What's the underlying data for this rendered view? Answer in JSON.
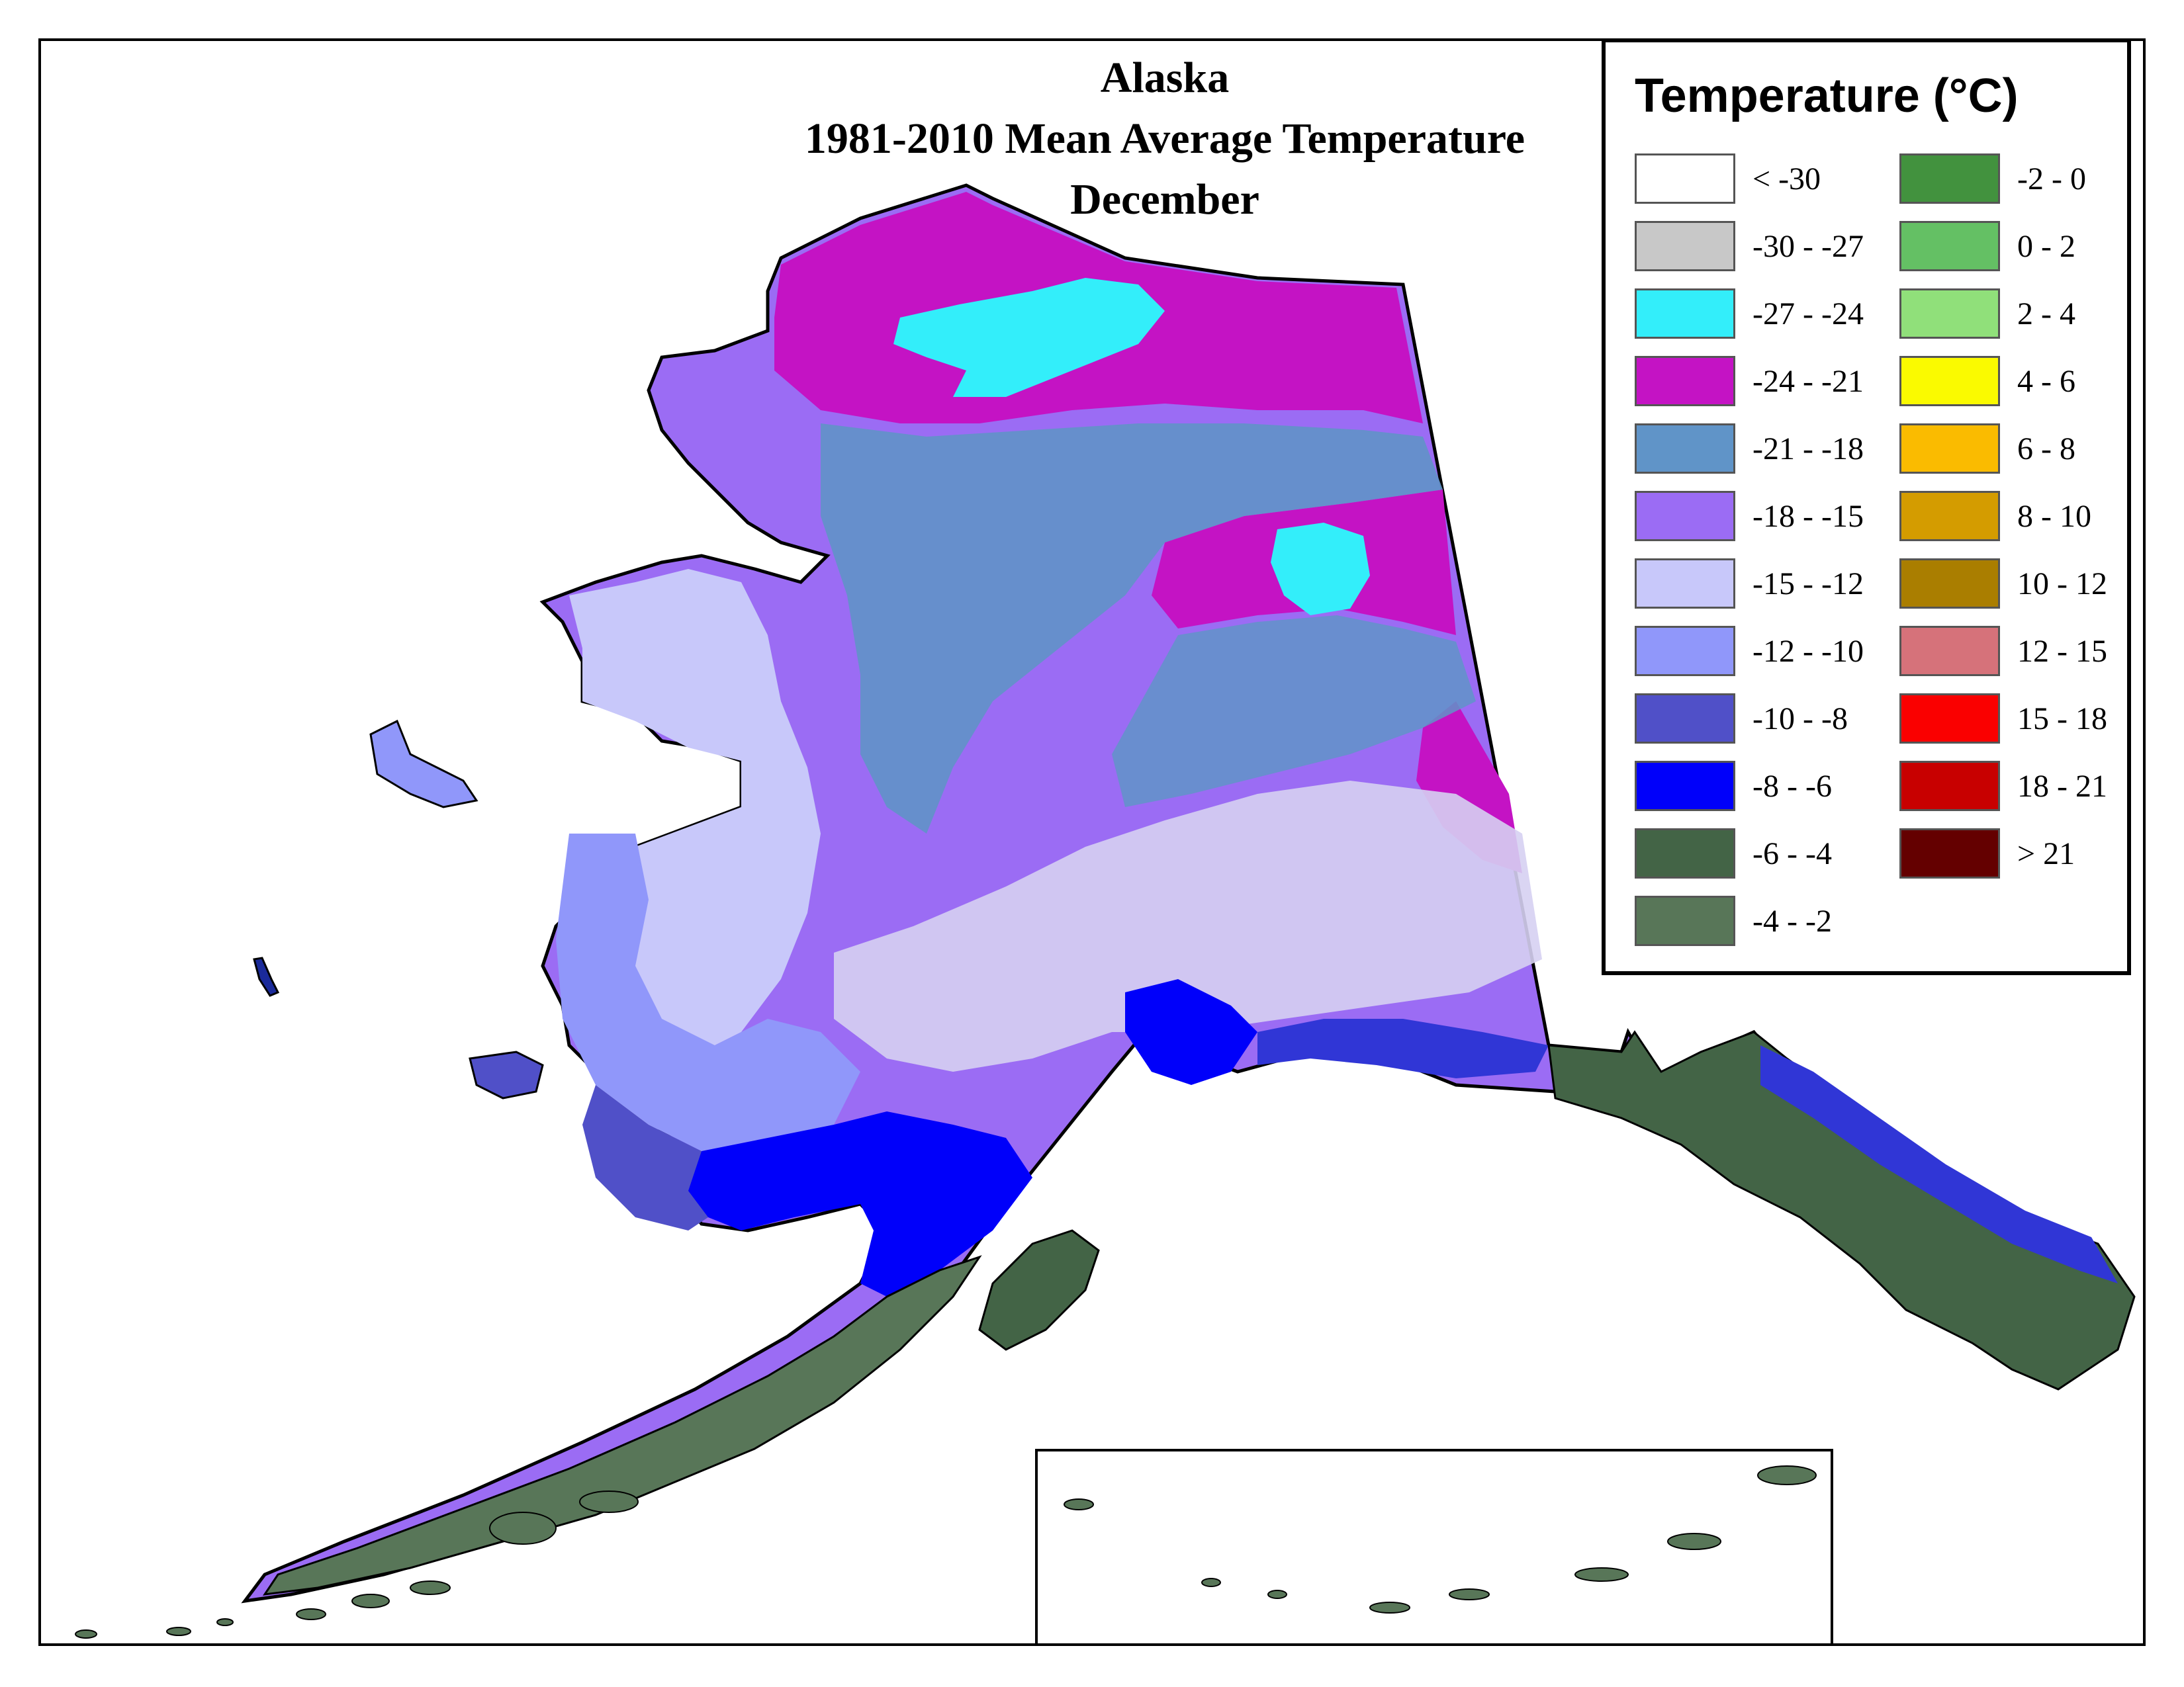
{
  "title": {
    "line1": "Alaska",
    "line2": "1981-2010 Mean Average Temperature",
    "line3": "December"
  },
  "legend": {
    "title": "Temperature (°C)",
    "items": [
      {
        "label": "< -30",
        "color": "#ffffff"
      },
      {
        "label": "-30 - -27",
        "color": "#c8c8c8"
      },
      {
        "label": "-27 - -24",
        "color": "#33eefa"
      },
      {
        "label": "-24 - -21",
        "color": "#c413c4"
      },
      {
        "label": "-21 - -18",
        "color": "#6094c8"
      },
      {
        "label": "-18 - -15",
        "color": "#9b6cf4"
      },
      {
        "label": "-15 - -12",
        "color": "#c8c8fa"
      },
      {
        "label": "-12 - -10",
        "color": "#9097fa"
      },
      {
        "label": "-10 - -8",
        "color": "#5050c8"
      },
      {
        "label": "-8 - -6",
        "color": "#0000fa"
      },
      {
        "label": "-6 - -4",
        "color": "#436446"
      },
      {
        "label": "-4 - -2",
        "color": "#587658"
      },
      {
        "label": "-2 - 0",
        "color": "#42923e"
      },
      {
        "label": "0 - 2",
        "color": "#64c064"
      },
      {
        "label": "2 - 4",
        "color": "#90e07a"
      },
      {
        "label": "4 - 6",
        "color": "#fafa00"
      },
      {
        "label": "6 - 8",
        "color": "#fabb00"
      },
      {
        "label": "8 - 10",
        "color": "#d49c00"
      },
      {
        "label": "10 - 12",
        "color": "#aa7e00"
      },
      {
        "label": "12 - 15",
        "color": "#d6727a"
      },
      {
        "label": "15 - 18",
        "color": "#fa0000"
      },
      {
        "label": "18 - 21",
        "color": "#c80000"
      },
      {
        "label": "> 21",
        "color": "#640000"
      }
    ]
  }
}
